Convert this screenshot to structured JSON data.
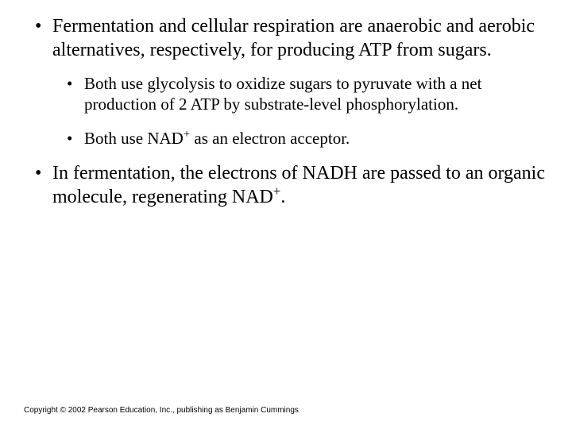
{
  "slide": {
    "background_color": "#ffffff",
    "text_color": "#000000",
    "font_family": "Times New Roman",
    "bullets_level1": [
      {
        "text": "Fermentation and cellular respiration are anaerobic and aerobic alternatives, respectively, for producing ATP from sugars.",
        "fontsize": 24,
        "sub_bullets": [
          {
            "text_html": "Both use glycolysis to oxidize sugars to pyruvate with a net production of 2 ATP by substrate-level phosphorylation.",
            "fontsize": 21
          },
          {
            "text_html": "Both use NAD<sup>+</sup> as an electron acceptor.",
            "fontsize": 21
          }
        ]
      },
      {
        "text_html": "In fermentation, the electrons of NADH are passed to an organic molecule, regenerating NAD<sup>+</sup>.",
        "fontsize": 24,
        "sub_bullets": []
      }
    ],
    "copyright": "Copyright © 2002 Pearson Education, Inc., publishing as Benjamin Cummings",
    "copyright_fontsize": 10,
    "copyright_font_family": "Arial"
  }
}
